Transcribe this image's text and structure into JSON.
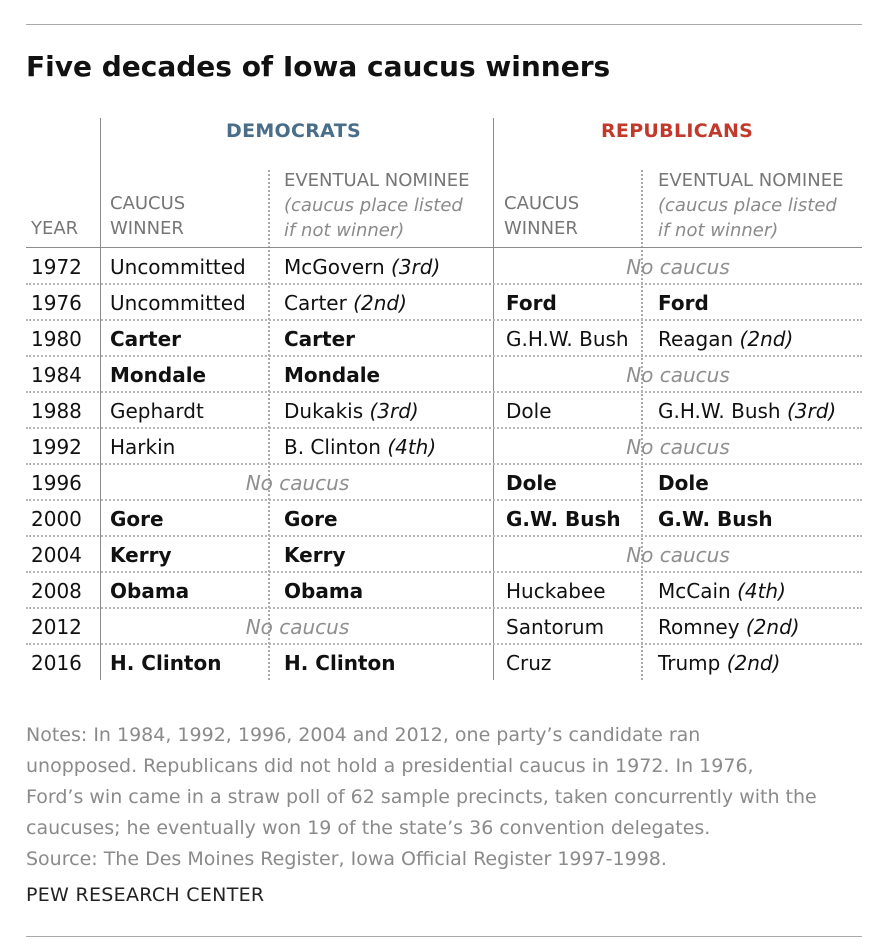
{
  "title": "Five decades of Iowa caucus winners",
  "parties": {
    "dem": "DEMOCRATS",
    "rep": "REPUBLICANS"
  },
  "headers": {
    "year": "YEAR",
    "winner_line1": "CAUCUS",
    "winner_line2": "WINNER",
    "nominee_line1": "EVENTUAL NOMINEE",
    "nominee_sub1": "(caucus place listed",
    "nominee_sub2": "if not winner)"
  },
  "rows": [
    {
      "year": "1972",
      "dw": "Uncommitted",
      "dw_bold": false,
      "dn": "McGovern ",
      "dn_note": "(3rd)",
      "dn_bold": false,
      "d_none": "",
      "rw": "",
      "rw_bold": false,
      "rn": "",
      "rn_note": "",
      "rn_bold": false,
      "r_none": "No caucus"
    },
    {
      "year": "1976",
      "dw": "Uncommitted",
      "dw_bold": false,
      "dn": "Carter ",
      "dn_note": "(2nd)",
      "dn_bold": false,
      "d_none": "",
      "rw": "Ford",
      "rw_bold": true,
      "rn": "Ford",
      "rn_note": "",
      "rn_bold": true,
      "r_none": ""
    },
    {
      "year": "1980",
      "dw": "Carter",
      "dw_bold": true,
      "dn": "Carter",
      "dn_note": "",
      "dn_bold": true,
      "d_none": "",
      "rw": "G.H.W. Bush",
      "rw_bold": false,
      "rn": "Reagan ",
      "rn_note": "(2nd)",
      "rn_bold": false,
      "r_none": ""
    },
    {
      "year": "1984",
      "dw": "Mondale",
      "dw_bold": true,
      "dn": "Mondale",
      "dn_note": "",
      "dn_bold": true,
      "d_none": "",
      "rw": "",
      "rw_bold": false,
      "rn": "",
      "rn_note": "",
      "rn_bold": false,
      "r_none": "No caucus"
    },
    {
      "year": "1988",
      "dw": "Gephardt",
      "dw_bold": false,
      "dn": "Dukakis ",
      "dn_note": "(3rd)",
      "dn_bold": false,
      "d_none": "",
      "rw": "Dole",
      "rw_bold": false,
      "rn": "G.H.W. Bush ",
      "rn_note": "(3rd)",
      "rn_bold": false,
      "r_none": ""
    },
    {
      "year": "1992",
      "dw": "Harkin",
      "dw_bold": false,
      "dn": "B. Clinton ",
      "dn_note": "(4th)",
      "dn_bold": false,
      "d_none": "",
      "rw": "",
      "rw_bold": false,
      "rn": "",
      "rn_note": "",
      "rn_bold": false,
      "r_none": "No caucus"
    },
    {
      "year": "1996",
      "dw": "",
      "dw_bold": false,
      "dn": "",
      "dn_note": "",
      "dn_bold": false,
      "d_none": "No caucus",
      "rw": "Dole",
      "rw_bold": true,
      "rn": "Dole",
      "rn_note": "",
      "rn_bold": true,
      "r_none": ""
    },
    {
      "year": "2000",
      "dw": "Gore",
      "dw_bold": true,
      "dn": "Gore",
      "dn_note": "",
      "dn_bold": true,
      "d_none": "",
      "rw": "G.W. Bush",
      "rw_bold": true,
      "rn": "G.W. Bush",
      "rn_note": "",
      "rn_bold": true,
      "r_none": ""
    },
    {
      "year": "2004",
      "dw": "Kerry",
      "dw_bold": true,
      "dn": "Kerry",
      "dn_note": "",
      "dn_bold": true,
      "d_none": "",
      "rw": "",
      "rw_bold": false,
      "rn": "",
      "rn_note": "",
      "rn_bold": false,
      "r_none": "No caucus"
    },
    {
      "year": "2008",
      "dw": "Obama",
      "dw_bold": true,
      "dn": "Obama",
      "dn_note": "",
      "dn_bold": true,
      "d_none": "",
      "rw": "Huckabee",
      "rw_bold": false,
      "rn": "McCain ",
      "rn_note": "(4th)",
      "rn_bold": false,
      "r_none": ""
    },
    {
      "year": "2012",
      "dw": "",
      "dw_bold": false,
      "dn": "",
      "dn_note": "",
      "dn_bold": false,
      "d_none": "No caucus",
      "rw": "Santorum",
      "rw_bold": false,
      "rn": "Romney ",
      "rn_note": "(2nd)",
      "rn_bold": false,
      "r_none": ""
    },
    {
      "year": "2016",
      "dw": "H. Clinton",
      "dw_bold": true,
      "dn": "H. Clinton",
      "dn_note": "",
      "dn_bold": true,
      "d_none": "",
      "rw": "Cruz",
      "rw_bold": false,
      "rn": "Trump ",
      "rn_note": "(2nd)",
      "rn_bold": false,
      "r_none": ""
    }
  ],
  "notes": [
    "Notes: In 1984, 1992, 1996, 2004 and 2012, one party’s candidate ran",
    "unopposed. Republicans did not hold a presidential caucus in 1972. In 1976,",
    "Ford’s win came in a straw poll of 62 sample precincts, taken concurrently with the",
    "caucuses; he eventually won 19 of the state’s 36 convention delegates."
  ],
  "source": "Source: The Des Moines Register, Iowa Official Register 1997-1998.",
  "brand": "PEW RESEARCH CENTER"
}
